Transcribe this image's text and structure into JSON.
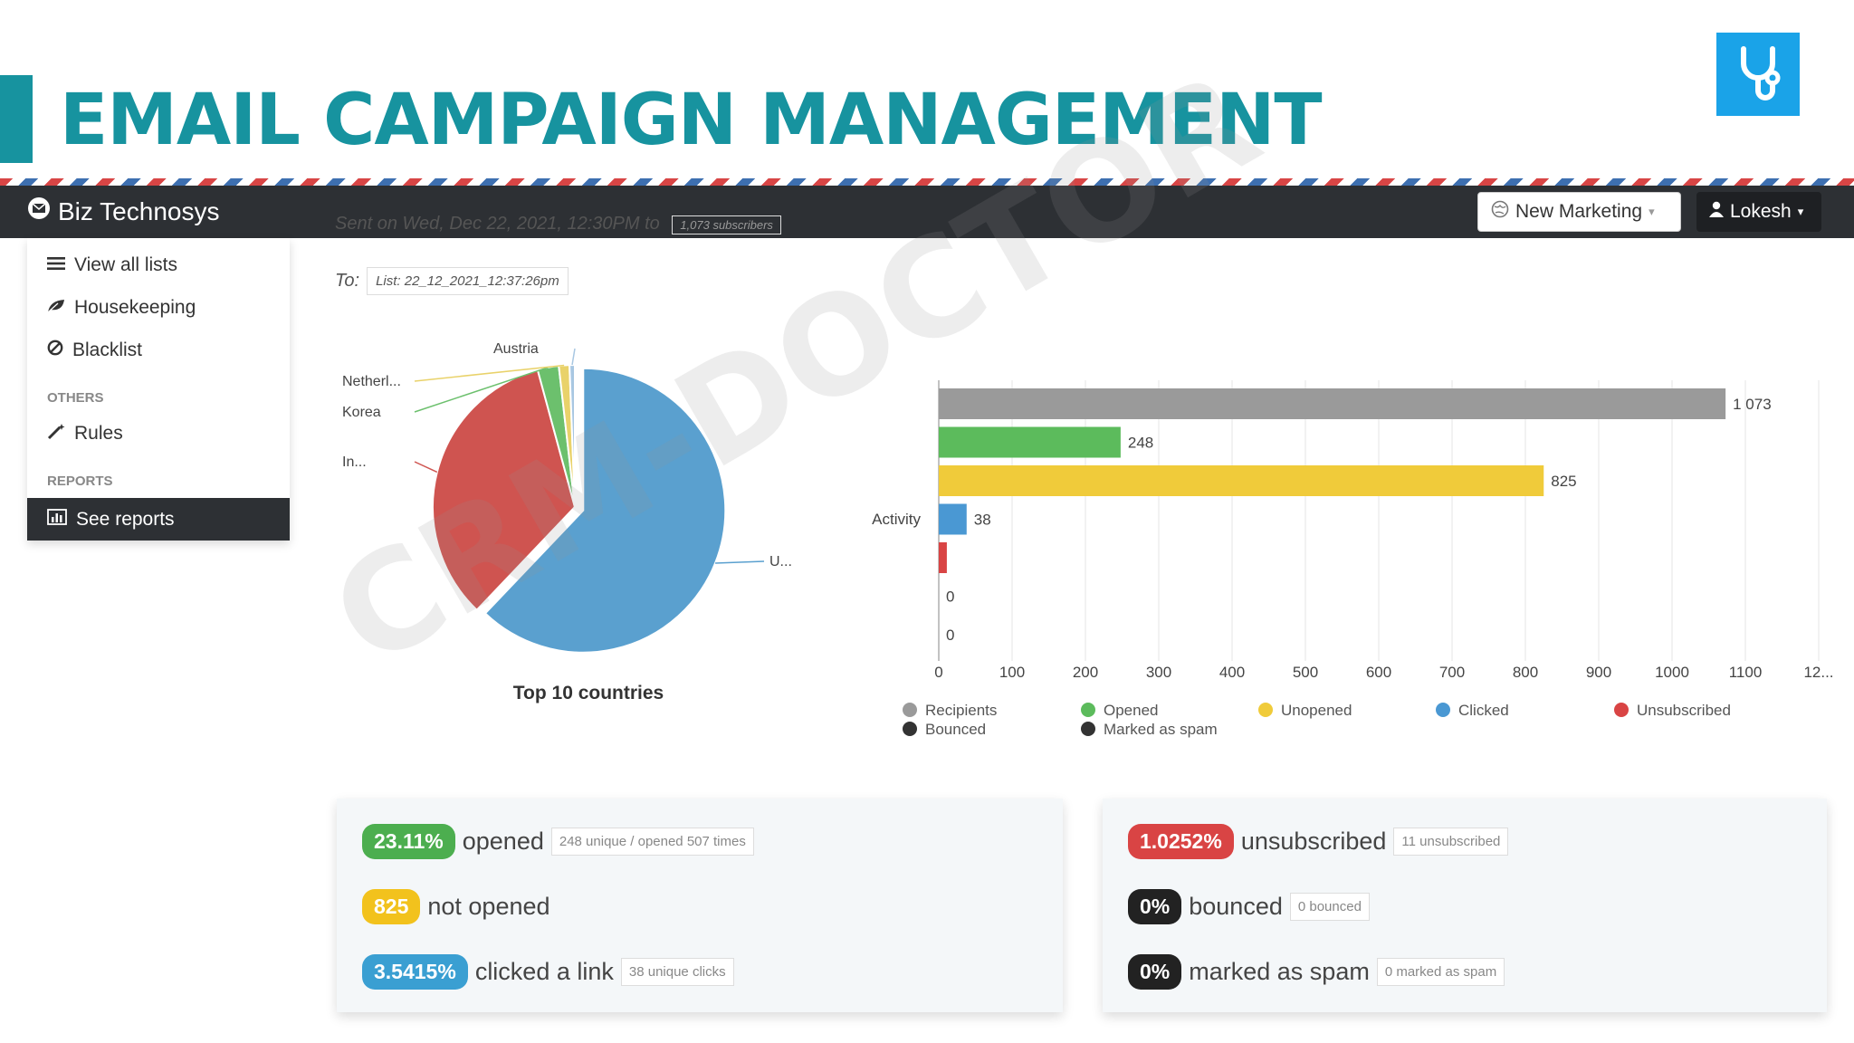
{
  "slide": {
    "title": "EMAIL CAMPAIGN MANAGEMENT",
    "logo": "stethoscope-icon",
    "accent_color": "#17939f"
  },
  "app": {
    "brand": "Biz Technosys",
    "nav_new_marketing": "New Marketing",
    "nav_user": "Lokesh"
  },
  "sidebar": {
    "items": [
      {
        "label": "View all lists",
        "icon": "list-icon"
      },
      {
        "label": "Housekeeping",
        "icon": "leaf-icon"
      },
      {
        "label": "Blacklist",
        "icon": "ban-icon"
      }
    ],
    "others_heading": "OTHERS",
    "rules_label": "Rules",
    "reports_heading": "REPORTS",
    "see_reports_label": "See reports"
  },
  "campaign": {
    "sent_text": "Sent on Wed, Dec 22, 2021, 12:30PM to",
    "sent_chip": "1,073 subscribers",
    "to_label": "To:",
    "to_value": "List: 22_12_2021_12:37:26pm"
  },
  "chart_data": [
    {
      "type": "pie",
      "title": "Top 10 countries",
      "labels": [
        "U...",
        "In...",
        "Korea",
        "Netherl...",
        "Austria"
      ],
      "values": [
        61.8,
        33.5,
        2.4,
        1.2,
        0.6
      ],
      "colors": [
        "#5aa0cf",
        "#cf5450",
        "#6cc06d",
        "#e9d26a",
        "#a8c7e2"
      ]
    },
    {
      "type": "bar",
      "orientation": "horizontal",
      "category_label": "Activity",
      "series": [
        {
          "name": "Recipients",
          "value": 1073,
          "label": "1 073",
          "color": "#9a9a9a"
        },
        {
          "name": "Opened",
          "value": 248,
          "label": "248",
          "color": "#5cbb5c"
        },
        {
          "name": "Unopened",
          "value": 825,
          "label": "825",
          "color": "#f0cb3a"
        },
        {
          "name": "Clicked",
          "value": 38,
          "label": "38",
          "color": "#4a98d3"
        },
        {
          "name": "Unsubscribed",
          "value": 11,
          "label": "",
          "color": "#d94444"
        },
        {
          "name": "Bounced",
          "value": 0,
          "label": "0",
          "color": "#333333"
        },
        {
          "name": "Marked as spam",
          "value": 0,
          "label": "0",
          "color": "#333333"
        }
      ],
      "xticks": [
        "0",
        "100",
        "200",
        "300",
        "400",
        "500",
        "600",
        "700",
        "800",
        "900",
        "1000",
        "1100",
        "12..."
      ],
      "xlim": [
        0,
        1200
      ],
      "grid": true,
      "legend_position": "bottom"
    }
  ],
  "stats_left": [
    {
      "badge": "23.11%",
      "text": "opened",
      "chip": "248 unique / opened 507 times",
      "color": "green"
    },
    {
      "badge": "825",
      "text": "not opened",
      "chip": "",
      "color": "yellow"
    },
    {
      "badge": "3.5415%",
      "text": "clicked a link",
      "chip": "38 unique clicks",
      "color": "blue"
    }
  ],
  "stats_right": [
    {
      "badge": "1.0252%",
      "text": "unsubscribed",
      "chip": "11 unsubscribed",
      "color": "red"
    },
    {
      "badge": "0%",
      "text": "bounced",
      "chip": "0 bounced",
      "color": "dark"
    },
    {
      "badge": "0%",
      "text": "marked as spam",
      "chip": "0 marked as spam",
      "color": "dark"
    }
  ],
  "watermark": "CRM-DOCTOR"
}
